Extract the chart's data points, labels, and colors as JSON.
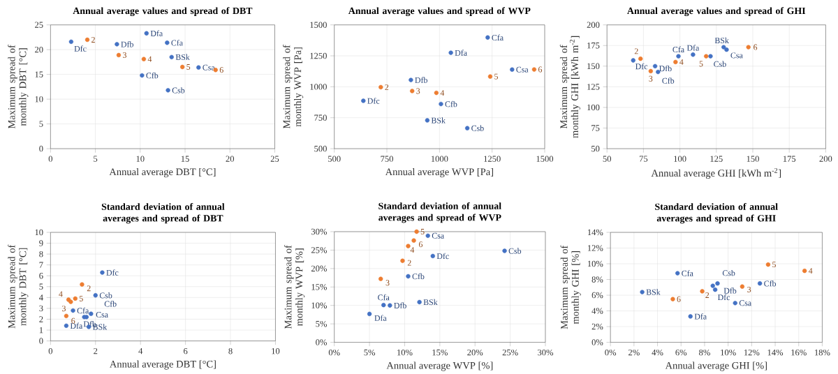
{
  "chart_data": [
    {
      "type": "scatter",
      "title": "Annual average values and spread of DBT",
      "xlabel": "Annual average DBT [°C]",
      "ylabel": "Maximum spread of monthly DBT [°C]",
      "xlim": [
        0,
        25
      ],
      "ylim": [
        0,
        25
      ],
      "xticks": [
        0,
        5,
        10,
        15,
        20,
        25
      ],
      "yticks": [
        0,
        5,
        10,
        15,
        20,
        25
      ],
      "grid": true,
      "marker": "circle",
      "series": [
        {
          "color": "#4472c4",
          "x": [
            2.3,
            7.4,
            10.7,
            13.0,
            13.5,
            16.5,
            10.2,
            13.1
          ],
          "values": [
            21.6,
            21.1,
            23.3,
            21.4,
            18.5,
            16.4,
            14.8,
            11.8
          ]
        },
        {
          "color": "#ed7d31",
          "x": [
            4.1,
            7.6,
            10.4,
            14.7,
            18.4
          ],
          "values": [
            22.0,
            18.9,
            18.1,
            16.5,
            15.9
          ]
        }
      ],
      "annotations": [
        {
          "text": "Dfc",
          "x": 2.3,
          "y": 21.6
        },
        {
          "text": "Dfb",
          "x": 7.4,
          "y": 21.1
        },
        {
          "text": "Dfa",
          "x": 10.7,
          "y": 23.3
        },
        {
          "text": "Cfa",
          "x": 13.0,
          "y": 21.4
        },
        {
          "text": "BSk",
          "x": 13.5,
          "y": 18.5
        },
        {
          "text": "Csa",
          "x": 16.5,
          "y": 16.4
        },
        {
          "text": "Cfb",
          "x": 10.2,
          "y": 14.8
        },
        {
          "text": "Csb",
          "x": 13.1,
          "y": 11.8
        },
        {
          "text": "2",
          "x": 4.1,
          "y": 22.0
        },
        {
          "text": "3",
          "x": 7.6,
          "y": 18.9
        },
        {
          "text": "4",
          "x": 10.4,
          "y": 18.1
        },
        {
          "text": "5",
          "x": 14.7,
          "y": 16.5
        },
        {
          "text": "6",
          "x": 18.4,
          "y": 15.9
        }
      ]
    },
    {
      "type": "scatter",
      "title": "Annual average values and spread of WVP",
      "xlabel": "Annual average WVP [Pa]",
      "ylabel": "Maximum spread of monthly WVP [Pa]",
      "xlim": [
        500,
        1500
      ],
      "ylim": [
        500,
        1500
      ],
      "xticks": [
        500,
        750,
        1000,
        1250,
        1500
      ],
      "yticks": [
        500,
        750,
        1000,
        1250,
        1500
      ],
      "grid": true,
      "marker": "circle",
      "series": [
        {
          "color": "#4472c4",
          "x": [
            638,
            864,
            1054,
            1229,
            1345,
            1007,
            942,
            1132
          ],
          "values": [
            887,
            1055,
            1275,
            1398,
            1139,
            861,
            729,
            666
          ]
        },
        {
          "color": "#ed7d31",
          "x": [
            721,
            870,
            985,
            1241,
            1450
          ],
          "values": [
            997,
            966,
            951,
            1083,
            1140
          ]
        }
      ],
      "annotations": [
        {
          "text": "Dfc",
          "x": 638,
          "y": 887
        },
        {
          "text": "Dfb",
          "x": 864,
          "y": 1055
        },
        {
          "text": "Dfa",
          "x": 1054,
          "y": 1275
        },
        {
          "text": "Cfa",
          "x": 1229,
          "y": 1398
        },
        {
          "text": "Csa",
          "x": 1345,
          "y": 1139
        },
        {
          "text": "Cfb",
          "x": 1007,
          "y": 861
        },
        {
          "text": "BSk",
          "x": 942,
          "y": 729
        },
        {
          "text": "Csb",
          "x": 1132,
          "y": 666
        },
        {
          "text": "2",
          "x": 721,
          "y": 997
        },
        {
          "text": "3",
          "x": 870,
          "y": 966
        },
        {
          "text": "4",
          "x": 985,
          "y": 951
        },
        {
          "text": "5",
          "x": 1241,
          "y": 1083
        },
        {
          "text": "6",
          "x": 1450,
          "y": 1140
        }
      ]
    },
    {
      "type": "scatter",
      "title": "Annual average values and spread of GHI",
      "xlabel": "Annual average GHI [kWh m$^{-2}$]",
      "ylabel": "Maximum spread of monthly GHI [kWh m$^{-2}$]",
      "xlim": [
        50,
        200
      ],
      "ylim": [
        50,
        200
      ],
      "xticks": [
        50,
        75,
        100,
        125,
        150,
        175,
        200
      ],
      "yticks": [
        50,
        75,
        100,
        125,
        150,
        175,
        200
      ],
      "grid": true,
      "marker": "circle",
      "series": [
        {
          "color": "#4472c4",
          "x": [
            68,
            83,
            85,
            99,
            109,
            121,
            130,
            132
          ],
          "values": [
            157,
            150,
            143,
            162,
            164,
            162,
            173,
            170
          ]
        },
        {
          "color": "#ed7d31",
          "x": [
            73,
            80,
            97,
            118,
            147
          ],
          "values": [
            159,
            144,
            155,
            162,
            173
          ]
        }
      ],
      "annotations": [
        {
          "text": "Dfc",
          "x": 68,
          "y": 157
        },
        {
          "text": "Dfb",
          "x": 83,
          "y": 150
        },
        {
          "text": "Cfb",
          "x": 85,
          "y": 143
        },
        {
          "text": "Cfa",
          "x": 99,
          "y": 162
        },
        {
          "text": "Dfa",
          "x": 109,
          "y": 164
        },
        {
          "text": "Csb",
          "x": 121,
          "y": 162
        },
        {
          "text": "BSk",
          "x": 130,
          "y": 173
        },
        {
          "text": "Csa",
          "x": 132,
          "y": 170
        },
        {
          "text": "2",
          "x": 73,
          "y": 159
        },
        {
          "text": "3",
          "x": 80,
          "y": 144
        },
        {
          "text": "4",
          "x": 97,
          "y": 155
        },
        {
          "text": "5",
          "x": 118,
          "y": 162
        },
        {
          "text": "6",
          "x": 147,
          "y": 173
        }
      ]
    },
    {
      "type": "scatter",
      "title": "Standard deviation of annual averages and spread of DBT",
      "xlabel": "Annual average DBT [°C]",
      "ylabel": "Maximum spread of monthly DBT [°C]",
      "xlim": [
        0,
        10
      ],
      "ylim": [
        0,
        10
      ],
      "xticks": [
        0,
        2,
        4,
        6,
        8,
        10
      ],
      "yticks": [
        0,
        1,
        2,
        3,
        4,
        5,
        6,
        7,
        8,
        9,
        10
      ],
      "grid": true,
      "marker": "circle",
      "series": [
        {
          "color": "#4472c4",
          "x": [
            2.3,
            2.0,
            1.0,
            1.8,
            1.6,
            1.5,
            0.7,
            1.7
          ],
          "values": [
            6.3,
            4.2,
            2.8,
            2.5,
            2.2,
            2.2,
            1.4,
            1.3
          ]
        },
        {
          "color": "#ed7d31",
          "x": [
            1.4,
            0.9,
            0.8,
            1.1,
            0.7
          ],
          "values": [
            5.2,
            3.6,
            3.8,
            3.9,
            2.3
          ]
        }
      ],
      "annotations": [
        {
          "text": "Dfc",
          "x": 2.3,
          "y": 6.3
        },
        {
          "text": "Csb",
          "x": 2.0,
          "y": 4.2
        },
        {
          "text": "Cfa",
          "x": 1.0,
          "y": 2.8
        },
        {
          "text": "Csa",
          "x": 1.8,
          "y": 2.5
        },
        {
          "text": "Cfb",
          "x": 1.6,
          "y": 2.2
        },
        {
          "text": "Dfb",
          "x": 1.5,
          "y": 2.2
        },
        {
          "text": "Dfa",
          "x": 0.7,
          "y": 1.4
        },
        {
          "text": "BSk",
          "x": 1.7,
          "y": 1.3
        },
        {
          "text": "2",
          "x": 1.4,
          "y": 5.2
        },
        {
          "text": "3",
          "x": 0.9,
          "y": 3.6
        },
        {
          "text": "4",
          "x": 0.8,
          "y": 3.8
        },
        {
          "text": "5",
          "x": 1.1,
          "y": 3.9
        },
        {
          "text": "6",
          "x": 0.7,
          "y": 2.3
        }
      ]
    },
    {
      "type": "scatter",
      "title": "Standard deviation of annual averages and spread of WVP",
      "xlabel": "Annual average WVP [%]",
      "ylabel": "Maximum spread of monthly WVP [%]",
      "xlim": [
        0,
        30
      ],
      "ylim": [
        0,
        30
      ],
      "xticks": [
        {
          "value": 0,
          "label": "0%"
        },
        {
          "value": 5,
          "label": "5%"
        },
        {
          "value": 10,
          "label": "10%"
        },
        {
          "value": 15,
          "label": "15%"
        },
        {
          "value": 20,
          "label": "20%"
        },
        {
          "value": 25,
          "label": "25%"
        },
        {
          "value": 30,
          "label": "30%"
        }
      ],
      "yticks": [
        {
          "value": 0,
          "label": "0%"
        },
        {
          "value": 5,
          "label": "5%"
        },
        {
          "value": 10,
          "label": "10%"
        },
        {
          "value": 15,
          "label": "15%"
        },
        {
          "value": 20,
          "label": "20%"
        },
        {
          "value": 25,
          "label": "25%"
        },
        {
          "value": 30,
          "label": "30%"
        }
      ],
      "grid": true,
      "marker": "circle",
      "series": [
        {
          "color": "#4472c4",
          "x": [
            13.3,
            14.0,
            24.2,
            10.5,
            12.1,
            7.0,
            7.9,
            5.0
          ],
          "values": [
            28.9,
            23.4,
            24.8,
            17.9,
            10.9,
            10.1,
            10.0,
            7.7
          ]
        },
        {
          "color": "#ed7d31",
          "x": [
            9.7,
            6.6,
            10.5,
            11.7,
            11.3
          ],
          "values": [
            22.1,
            17.2,
            26.1,
            30.0,
            27.6
          ]
        }
      ],
      "annotations": [
        {
          "text": "Csa",
          "x": 13.3,
          "y": 28.9
        },
        {
          "text": "Dfc",
          "x": 14.0,
          "y": 23.4
        },
        {
          "text": "Csb",
          "x": 24.2,
          "y": 24.8
        },
        {
          "text": "Cfb",
          "x": 10.5,
          "y": 17.9
        },
        {
          "text": "BSk",
          "x": 12.1,
          "y": 10.9
        },
        {
          "text": "Cfa",
          "x": 7.0,
          "y": 10.1
        },
        {
          "text": "Dfb",
          "x": 7.9,
          "y": 10.0
        },
        {
          "text": "Dfa",
          "x": 5.0,
          "y": 7.7
        },
        {
          "text": "2",
          "x": 9.7,
          "y": 22.1
        },
        {
          "text": "3",
          "x": 6.6,
          "y": 17.2
        },
        {
          "text": "4",
          "x": 10.5,
          "y": 26.1
        },
        {
          "text": "5",
          "x": 11.7,
          "y": 30.0
        },
        {
          "text": "6",
          "x": 11.3,
          "y": 27.6
        }
      ]
    },
    {
      "type": "scatter",
      "title": "Standard deviation of annual averages and spread of GHI",
      "xlabel": "Annual average GHI [%]",
      "ylabel": "Maximum spread of monthly GHI [%]",
      "xlim": [
        0,
        18
      ],
      "ylim": [
        0,
        14
      ],
      "xticks": [
        {
          "value": 0,
          "label": "0%"
        },
        {
          "value": 2,
          "label": "2%"
        },
        {
          "value": 4,
          "label": "4%"
        },
        {
          "value": 6,
          "label": "6%"
        },
        {
          "value": 8,
          "label": "8%"
        },
        {
          "value": 10,
          "label": "10%"
        },
        {
          "value": 12,
          "label": "12%"
        },
        {
          "value": 14,
          "label": "14%"
        },
        {
          "value": 16,
          "label": "16%"
        },
        {
          "value": 18,
          "label": "18%"
        }
      ],
      "yticks": [
        {
          "value": 0,
          "label": "0%"
        },
        {
          "value": 2,
          "label": "2%"
        },
        {
          "value": 4,
          "label": "4%"
        },
        {
          "value": 6,
          "label": "6%"
        },
        {
          "value": 8,
          "label": "8%"
        },
        {
          "value": 10,
          "label": "10%"
        },
        {
          "value": 12,
          "label": "12%"
        },
        {
          "value": 14,
          "label": "14%"
        }
      ],
      "grid": true,
      "marker": "circle",
      "series": [
        {
          "color": "#4472c4",
          "x": [
            2.7,
            5.7,
            6.8,
            9.1,
            8.9,
            8.7,
            10.6,
            12.7
          ],
          "values": [
            6.4,
            8.8,
            3.3,
            7.5,
            6.7,
            7.2,
            5.0,
            7.5
          ]
        },
        {
          "color": "#ed7d31",
          "x": [
            7.8,
            11.2,
            16.5,
            13.4,
            5.3
          ],
          "values": [
            6.5,
            7.1,
            9.1,
            9.9,
            5.5
          ]
        }
      ],
      "annotations": [
        {
          "text": "BSk",
          "x": 2.7,
          "y": 6.4
        },
        {
          "text": "Cfa",
          "x": 5.7,
          "y": 8.8
        },
        {
          "text": "Dfa",
          "x": 6.8,
          "y": 3.3
        },
        {
          "text": "Csb",
          "x": 9.1,
          "y": 7.5
        },
        {
          "text": "Dfb",
          "x": 8.9,
          "y": 6.7
        },
        {
          "text": "Dfc",
          "x": 8.7,
          "y": 7.2
        },
        {
          "text": "Csa",
          "x": 10.6,
          "y": 5.0
        },
        {
          "text": "Cfb",
          "x": 12.7,
          "y": 7.5
        },
        {
          "text": "2",
          "x": 7.8,
          "y": 6.5
        },
        {
          "text": "3",
          "x": 11.2,
          "y": 7.1
        },
        {
          "text": "4",
          "x": 16.5,
          "y": 9.1
        },
        {
          "text": "5",
          "x": 13.4,
          "y": 9.9
        },
        {
          "text": "6",
          "x": 5.3,
          "y": 5.5
        }
      ]
    }
  ]
}
